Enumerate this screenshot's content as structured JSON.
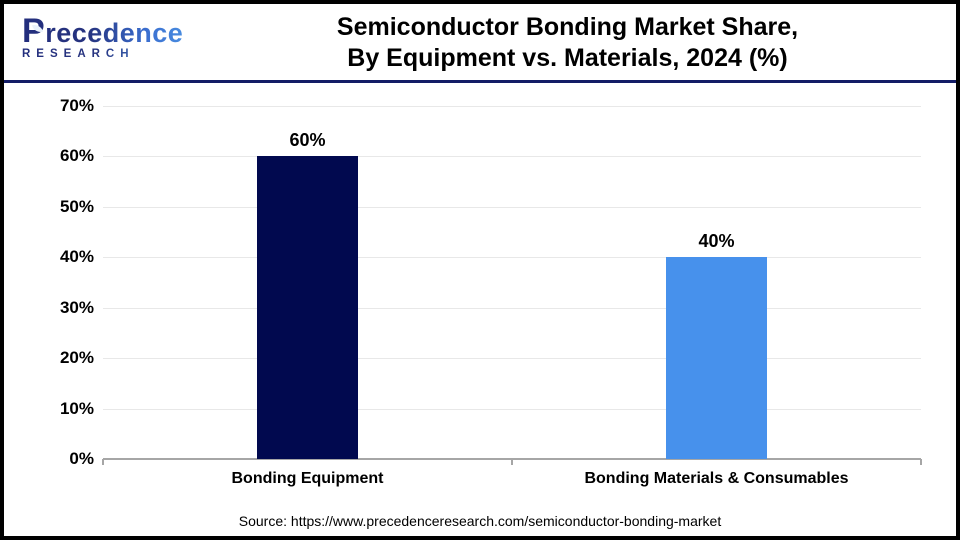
{
  "brand": {
    "name": "Precedence",
    "subname": "RESEARCH",
    "navy": "#232e7d",
    "blue": "#4a90e2"
  },
  "header": {
    "title_line1": "Semiconductor Bonding Market Share,",
    "title_line2": "By Equipment vs. Materials, 2024 (%)"
  },
  "chart_data": {
    "type": "bar",
    "title": "Semiconductor Bonding Market Share, By Equipment vs. Materials, 2024 (%)",
    "categories": [
      "Bonding Equipment",
      "Bonding Materials & Consumables"
    ],
    "values": [
      60,
      40
    ],
    "value_labels": [
      "60%",
      "40%"
    ],
    "unit": "%",
    "bar_colors": [
      "#01094f",
      "#4791ec"
    ],
    "y_ticks": [
      "0%",
      "10%",
      "20%",
      "30%",
      "40%",
      "50%",
      "60%",
      "70%"
    ],
    "ylim": [
      0,
      70
    ],
    "grid": true,
    "legend": false,
    "gridline_color": "#e8e8e8",
    "axis_color": "#a6a6a6"
  },
  "footer": {
    "source": "Source: https://www.precedenceresearch.com/semiconductor-bonding-market"
  }
}
